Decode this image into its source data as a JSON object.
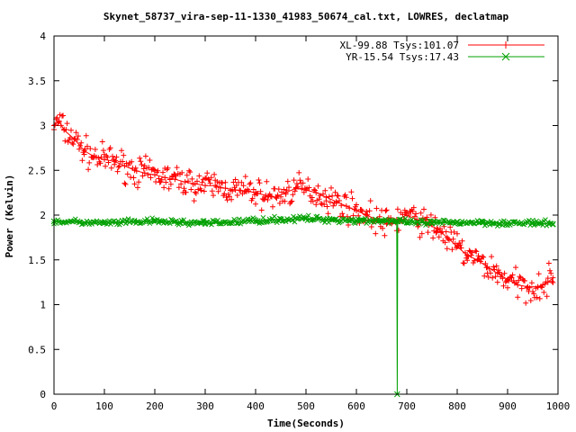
{
  "chart_data": {
    "type": "scatter",
    "title": "Skynet_58737_vira-sep-11-1330_41983_50674_cal.txt, LOWRES, declatmap",
    "xlabel": "Time(Seconds)",
    "ylabel": "Power (Kelvin)",
    "xlim": [
      0,
      1000
    ],
    "ylim": [
      0,
      4
    ],
    "x_ticks": [
      "0",
      "100",
      "200",
      "300",
      "400",
      "500",
      "600",
      "700",
      "800",
      "900",
      "1000"
    ],
    "y_ticks": [
      "0",
      "0.5",
      "1",
      "1.5",
      "2",
      "2.5",
      "3",
      "3.5",
      "4"
    ],
    "grid": false,
    "legend_position": "top-right",
    "series": [
      {
        "name": "XL-99.88 Tsys:101.07",
        "color": "#ff0000",
        "marker": "plus",
        "x": [
          0,
          10,
          20,
          40,
          60,
          80,
          100,
          120,
          140,
          160,
          180,
          200,
          220,
          240,
          260,
          280,
          300,
          320,
          340,
          360,
          380,
          400,
          420,
          440,
          460,
          480,
          500,
          520,
          540,
          560,
          580,
          600,
          620,
          640,
          660,
          680,
          700,
          720,
          740,
          760,
          780,
          800,
          820,
          840,
          860,
          880,
          900,
          920,
          940,
          960,
          980,
          990
        ],
        "y": [
          3.0,
          3.05,
          2.95,
          2.85,
          2.72,
          2.65,
          2.62,
          2.6,
          2.55,
          2.5,
          2.47,
          2.45,
          2.42,
          2.4,
          2.37,
          2.35,
          2.33,
          2.33,
          2.3,
          2.28,
          2.27,
          2.25,
          2.22,
          2.2,
          2.25,
          2.3,
          2.28,
          2.25,
          2.2,
          2.15,
          2.1,
          2.05,
          2.0,
          1.95,
          1.9,
          1.95,
          2.0,
          1.95,
          1.9,
          1.85,
          1.75,
          1.65,
          1.55,
          1.5,
          1.42,
          1.35,
          1.28,
          1.22,
          1.2,
          1.2,
          1.25,
          1.3
        ]
      },
      {
        "name": "YR-15.54 Tsys:17.43",
        "color": "#00a000",
        "marker": "cross",
        "x": [
          0,
          50,
          100,
          150,
          200,
          250,
          300,
          350,
          400,
          450,
          500,
          550,
          600,
          650,
          680,
          681,
          682,
          700,
          750,
          800,
          850,
          900,
          950,
          990
        ],
        "y": [
          1.93,
          1.92,
          1.91,
          1.92,
          1.93,
          1.92,
          1.91,
          1.92,
          1.94,
          1.95,
          1.96,
          1.95,
          1.94,
          1.94,
          1.93,
          0.0,
          1.93,
          1.92,
          1.91,
          1.92,
          1.92,
          1.91,
          1.91,
          1.9
        ]
      }
    ]
  }
}
